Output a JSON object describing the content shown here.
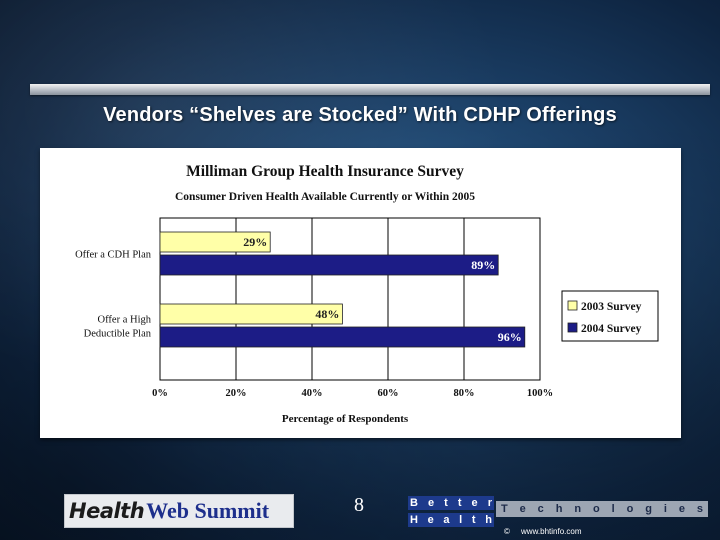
{
  "slide": {
    "title": "Vendors “Shelves are Stocked” With CDHP Offerings",
    "page_number": "8"
  },
  "footer": {
    "left_logo": {
      "health": "Health",
      "summit": "Web Summit"
    },
    "right_logo": {
      "line1": "Better",
      "line2": "Health",
      "tech": "Technologies",
      "copyright_symbol": "©",
      "url": "www.bhtinfo.com"
    }
  },
  "colors": {
    "series_2003": "#ffffa8",
    "series_2004": "#1c1c86"
  },
  "chart_data": {
    "type": "bar",
    "orientation": "horizontal",
    "title": "Milliman Group Health Insurance Survey",
    "subtitle": "Consumer Driven Health Available Currently or Within 2005",
    "xlabel": "Percentage of Respondents",
    "categories": [
      [
        "Offer a CDH Plan"
      ],
      [
        "Offer a High",
        "Deductible Plan"
      ]
    ],
    "series": [
      {
        "name": "2003 Survey",
        "values": [
          29,
          48
        ],
        "labels": [
          "29%",
          "48%"
        ],
        "color": "#ffffa8"
      },
      {
        "name": "2004 Survey",
        "values": [
          89,
          96
        ],
        "labels": [
          "89%",
          "96%"
        ],
        "color": "#1c1c86"
      }
    ],
    "xlim": [
      0,
      100
    ],
    "xticks": [
      0,
      20,
      40,
      60,
      80,
      100
    ],
    "xtick_labels": [
      "0%",
      "20%",
      "40%",
      "60%",
      "80%",
      "100%"
    ],
    "grid": true,
    "legend": "right"
  }
}
